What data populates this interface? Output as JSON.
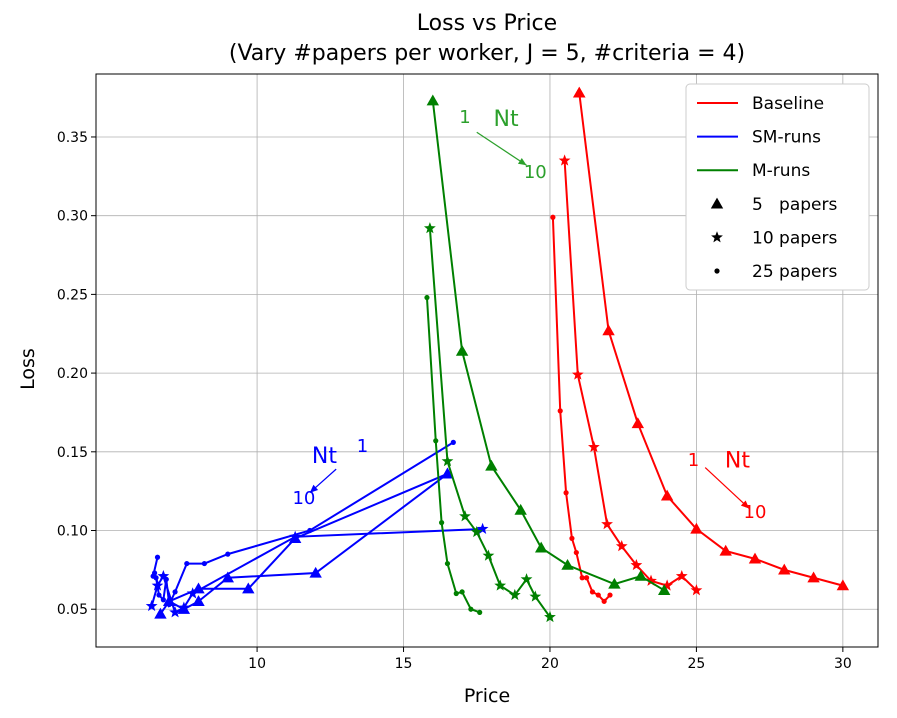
{
  "chart_data": {
    "type": "line",
    "title": "Loss vs Price",
    "subtitle": "(Vary #papers per worker, J = 5, #criteria = 4)",
    "xlabel": "Price",
    "ylabel": "Loss",
    "xlim": [
      4.5,
      31.2
    ],
    "ylim": [
      0.026,
      0.39
    ],
    "xticks": [
      10,
      15,
      20,
      25,
      30
    ],
    "yticks": [
      0.05,
      0.1,
      0.15,
      0.2,
      0.25,
      0.3,
      0.35
    ],
    "xtick_labels": [
      "10",
      "15",
      "20",
      "25",
      "30"
    ],
    "ytick_labels": [
      "0.05",
      "0.10",
      "0.15",
      "0.20",
      "0.25",
      "0.30",
      "0.35"
    ],
    "grid": true,
    "legend_position": "top-right",
    "legend": [
      {
        "label": "Baseline",
        "kind": "line",
        "color": "#ff0000"
      },
      {
        "label": "SM-runs",
        "kind": "line",
        "color": "#0000ff"
      },
      {
        "label": "M-runs",
        "kind": "line",
        "color": "#008000"
      },
      {
        "label": "5   papers",
        "kind": "marker",
        "marker": "triangle"
      },
      {
        "label": "10 papers",
        "kind": "marker",
        "marker": "star"
      },
      {
        "label": "25 papers",
        "kind": "marker",
        "marker": "dot"
      }
    ],
    "annotations": [
      {
        "text": "1",
        "x": 13.6,
        "y": 0.15,
        "color": "#0000ff",
        "size": 18
      },
      {
        "text": "Nt",
        "x": 12.3,
        "y": 0.143,
        "color": "#0000ff",
        "size": 22
      },
      {
        "text": "10",
        "x": 11.6,
        "y": 0.117,
        "color": "#0000ff",
        "size": 18
      },
      {
        "text": "1",
        "x": 17.1,
        "y": 0.359,
        "color": "#2ca02c",
        "size": 18
      },
      {
        "text": "Nt",
        "x": 18.5,
        "y": 0.357,
        "color": "#2ca02c",
        "size": 22
      },
      {
        "text": "10",
        "x": 19.5,
        "y": 0.324,
        "color": "#2ca02c",
        "size": 18
      },
      {
        "text": "1",
        "x": 24.9,
        "y": 0.141,
        "color": "#ff0000",
        "size": 18
      },
      {
        "text": "Nt",
        "x": 26.4,
        "y": 0.14,
        "color": "#ff0000",
        "size": 22
      },
      {
        "text": "10",
        "x": 27.0,
        "y": 0.108,
        "color": "#ff0000",
        "size": 18
      }
    ],
    "arrows": [
      {
        "from": [
          12.7,
          0.139
        ],
        "to": [
          11.8,
          0.124
        ],
        "color": "#0000ff"
      },
      {
        "from": [
          17.5,
          0.353
        ],
        "to": [
          19.2,
          0.332
        ],
        "color": "#2ca02c"
      },
      {
        "from": [
          25.3,
          0.14
        ],
        "to": [
          26.8,
          0.114
        ],
        "color": "#ff0000"
      }
    ],
    "series": [
      {
        "name": "Baseline",
        "color": "#ff0000",
        "marker": "triangle",
        "x": [
          21.0,
          21.0,
          22.0,
          23.0,
          24.0,
          25.0,
          26.0,
          27.0,
          28.0,
          29.0,
          30.0
        ],
        "y": [
          0.378,
          0.378,
          0.227,
          0.168,
          0.122,
          0.101,
          0.087,
          0.082,
          0.075,
          0.07,
          0.065
        ]
      },
      {
        "name": "Baseline",
        "color": "#ff0000",
        "marker": "star",
        "x": [
          20.5,
          20.95,
          21.5,
          21.95,
          22.45,
          22.95,
          23.45,
          24.0,
          24.5,
          25.0
        ],
        "y": [
          0.335,
          0.199,
          0.153,
          0.104,
          0.09,
          0.078,
          0.068,
          0.065,
          0.071,
          0.062
        ]
      },
      {
        "name": "Baseline",
        "color": "#ff0000",
        "marker": "dot",
        "x": [
          20.1,
          20.35,
          20.55,
          20.75,
          20.9,
          21.1,
          21.25,
          21.45,
          21.65,
          21.85,
          22.05
        ],
        "y": [
          0.299,
          0.176,
          0.124,
          0.095,
          0.086,
          0.07,
          0.07,
          0.061,
          0.059,
          0.055,
          0.059
        ]
      },
      {
        "name": "SM-runs",
        "color": "#0000ff",
        "marker": "triangle",
        "x": [
          16.5,
          12.0,
          9.0,
          8.0,
          7.5,
          7.0,
          6.7,
          7.0,
          8.0,
          9.7,
          11.3,
          16.5
        ],
        "y": [
          0.136,
          0.073,
          0.07,
          0.055,
          0.05,
          0.055,
          0.047,
          0.055,
          0.063,
          0.063,
          0.095,
          0.136
        ]
      },
      {
        "name": "SM-runs",
        "color": "#0000ff",
        "marker": "star",
        "x": [
          17.7,
          11.3,
          7.8,
          7.5,
          7.2,
          6.8,
          6.6,
          6.4
        ],
        "y": [
          0.101,
          0.096,
          0.06,
          0.051,
          0.048,
          0.071,
          0.065,
          0.052
        ]
      },
      {
        "name": "SM-runs",
        "color": "#0000ff",
        "marker": "dot",
        "x": [
          16.7,
          11.8,
          9.0,
          8.2,
          7.6,
          7.2,
          7.0,
          6.9,
          6.8,
          6.65,
          6.55,
          6.5,
          6.45,
          6.6
        ],
        "y": [
          0.156,
          0.1,
          0.085,
          0.079,
          0.079,
          0.061,
          0.053,
          0.069,
          0.056,
          0.059,
          0.07,
          0.073,
          0.071,
          0.083
        ]
      },
      {
        "name": "M-runs",
        "color": "#008000",
        "marker": "triangle",
        "x": [
          16.0,
          17.0,
          18.0,
          19.0,
          19.7,
          20.6,
          22.2,
          23.1,
          23.9
        ],
        "y": [
          0.373,
          0.214,
          0.141,
          0.113,
          0.089,
          0.078,
          0.066,
          0.071,
          0.062
        ]
      },
      {
        "name": "M-runs",
        "color": "#008000",
        "marker": "star",
        "x": [
          15.9,
          16.5,
          17.1,
          17.5,
          17.9,
          18.3,
          18.8,
          19.2,
          19.5,
          20.0
        ],
        "y": [
          0.292,
          0.144,
          0.109,
          0.099,
          0.084,
          0.065,
          0.059,
          0.069,
          0.058,
          0.045
        ]
      },
      {
        "name": "M-runs",
        "color": "#008000",
        "marker": "dot",
        "x": [
          15.8,
          16.1,
          16.3,
          16.5,
          16.8,
          17.0,
          17.3,
          17.6
        ],
        "y": [
          0.248,
          0.157,
          0.105,
          0.079,
          0.06,
          0.061,
          0.05,
          0.048
        ]
      }
    ]
  }
}
